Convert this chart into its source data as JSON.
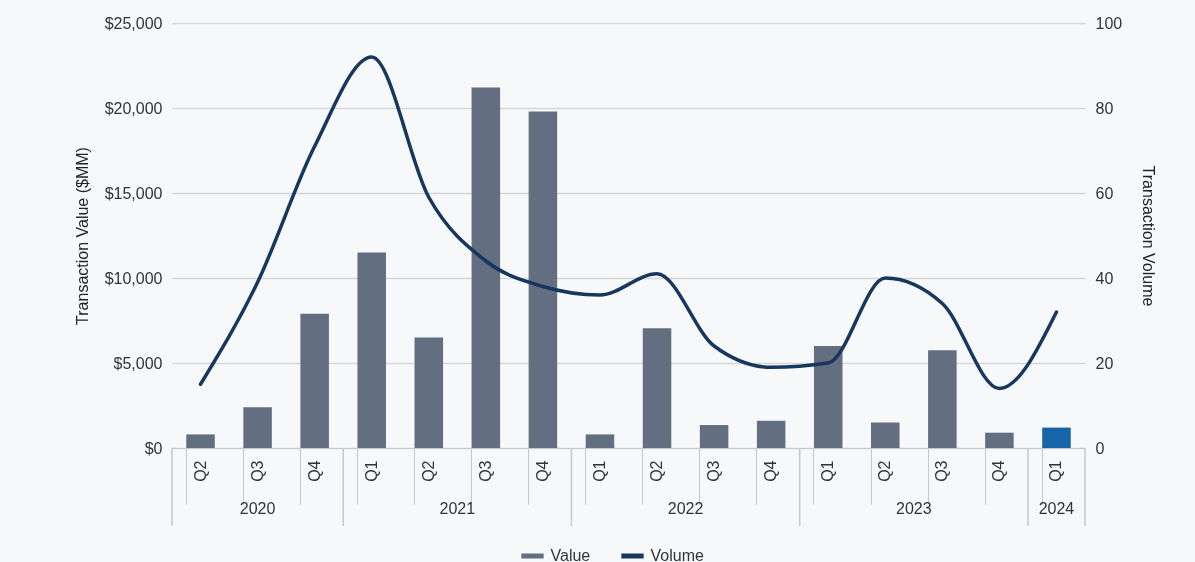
{
  "chart_data": {
    "type": "bar",
    "xlabel": null,
    "ylabel": "Transaction Value ($MM)",
    "y2label": "Transaction Volume",
    "categories": [
      "Q2",
      "Q3",
      "Q4",
      "Q1",
      "Q2",
      "Q3",
      "Q4",
      "Q1",
      "Q2",
      "Q3",
      "Q4",
      "Q1",
      "Q2",
      "Q3",
      "Q4",
      "Q1"
    ],
    "annotations": [
      "2020",
      "2021",
      "2022",
      "2023",
      "2024"
    ],
    "series": [
      {
        "name": "Value",
        "color": "#636f80",
        "colors": [
          "#636f80",
          "#636f80",
          "#636f80",
          "#636f80",
          "#636f80",
          "#636f80",
          "#636f80",
          "#636f80",
          "#636f80",
          "#636f80",
          "#636f80",
          "#636f80",
          "#636f80",
          "#636f80",
          "#636f80",
          "#1565a8"
        ],
        "values": [
          800,
          2400,
          7900,
          11500,
          6500,
          21200,
          19800,
          800,
          7050,
          1350,
          1600,
          6000,
          1500,
          5750,
          900,
          1200
        ]
      },
      {
        "name": "Volume",
        "type": "line",
        "axis": "y2",
        "color": "#17375e",
        "values": [
          15,
          39,
          71,
          92,
          59,
          44,
          38,
          36,
          41,
          24,
          19,
          20,
          40,
          34,
          14,
          32
        ]
      }
    ],
    "ylim": [
      0,
      25000
    ],
    "yticks": [
      {
        "value": 0,
        "label": "$0"
      },
      {
        "value": 5000,
        "label": "$5,000"
      },
      {
        "value": 10000,
        "label": "$10,000"
      },
      {
        "value": 15000,
        "label": "$15,000"
      },
      {
        "value": 20000,
        "label": "$20,000"
      },
      {
        "value": 25000,
        "label": "$25,000"
      }
    ],
    "y2lim": [
      0,
      100
    ],
    "y2ticks": [
      0,
      20,
      40,
      60,
      80,
      100
    ],
    "grid": "y",
    "legend": "bottom",
    "marker": "none",
    "line_style": "solid"
  }
}
